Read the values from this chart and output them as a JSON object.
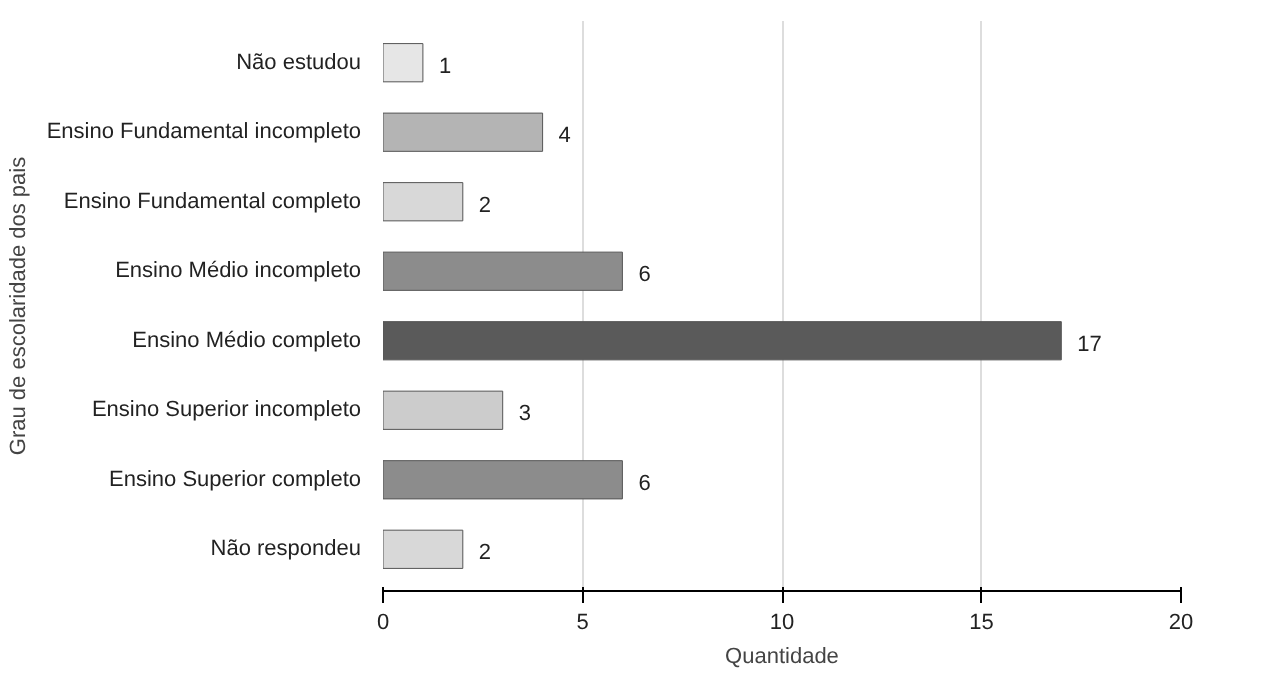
{
  "chart_data": {
    "type": "bar",
    "orientation": "horizontal",
    "xlabel": "Quantidade",
    "ylabel": "Grau de escolaridade dos pais",
    "categories": [
      "Não estudou",
      "Ensino Fundamental incompleto",
      "Ensino Fundamental completo",
      "Ensino Médio incompleto",
      "Ensino Médio completo",
      "Ensino Superior incompleto",
      "Ensino Superior completo",
      "Não respondeu"
    ],
    "values": [
      1,
      4,
      2,
      6,
      17,
      3,
      6,
      2
    ],
    "colors": [
      "#e6e6e6",
      "#b4b4b4",
      "#d8d8d8",
      "#8c8c8c",
      "#5a5a5a",
      "#cccccc",
      "#8c8c8c",
      "#d8d8d8"
    ],
    "xlim": [
      0,
      20
    ],
    "xticks": [
      0,
      5,
      10,
      15,
      20
    ],
    "grid": "x",
    "data_labels": true
  }
}
